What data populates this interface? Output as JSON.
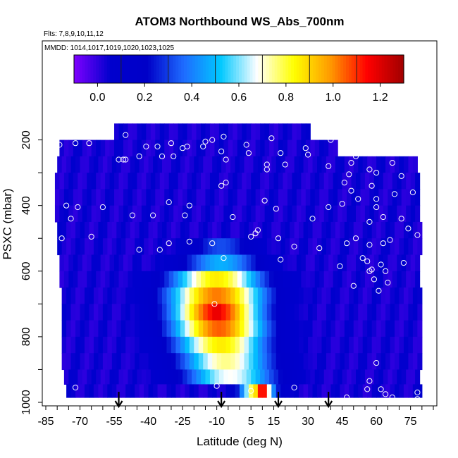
{
  "chart_data": {
    "type": "heatmap",
    "title": "ATOM3 Northbound WS_Abs_700nm",
    "flights_note": "Flts: 7,8,9,10,11,12",
    "dates_note": "MMDD: 1014,1017,1019,1020,1023,1025",
    "xlabel": "Latitude (deg N)",
    "ylabel": "PSXC (mbar)",
    "xlim": [
      -85,
      85
    ],
    "ylim": [
      1000,
      100
    ],
    "y_reversed": true,
    "x_ticks": [
      "-85",
      "-70",
      "-55",
      "-40",
      "-25",
      "-10",
      "5",
      "15",
      "30",
      "45",
      "60",
      "75"
    ],
    "y_ticks": [
      "200",
      "400",
      "600",
      "800",
      "1000"
    ],
    "colorbar": {
      "range": [
        -0.1,
        1.3
      ],
      "ticks": [
        "0.0",
        "0.2",
        "0.4",
        "0.6",
        "0.8",
        "1.0",
        "1.2"
      ],
      "colors": [
        "#7f00ff",
        "#0000cd",
        "#0000c8",
        "#1e6cff",
        "#00c8ff",
        "#ffffff",
        "#ffff00",
        "#ff9900",
        "#ff0000",
        "#a00000"
      ]
    },
    "pressure_levels": [
      175,
      225,
      275,
      325,
      375,
      425,
      475,
      525,
      575,
      625,
      675,
      725,
      775,
      825,
      875,
      925,
      965
    ],
    "domain_bounds": [
      {
        "p": 175,
        "lat_min": -55,
        "lat_max": 30
      },
      {
        "p": 225,
        "lat_min": -79,
        "lat_max": 42
      },
      {
        "p": 275,
        "lat_min": -80,
        "lat_max": 77
      },
      {
        "p": 325,
        "lat_min": -81,
        "lat_max": 78
      },
      {
        "p": 375,
        "lat_min": -81,
        "lat_max": 78
      },
      {
        "p": 425,
        "lat_min": -81,
        "lat_max": 79
      },
      {
        "p": 475,
        "lat_min": -80,
        "lat_max": 79
      },
      {
        "p": 525,
        "lat_min": -80,
        "lat_max": 79
      },
      {
        "p": 575,
        "lat_min": -79,
        "lat_max": 79
      },
      {
        "p": 625,
        "lat_min": -79,
        "lat_max": 79
      },
      {
        "p": 675,
        "lat_min": -78,
        "lat_max": 79
      },
      {
        "p": 725,
        "lat_min": -78,
        "lat_max": 79
      },
      {
        "p": 775,
        "lat_min": -78,
        "lat_max": 79
      },
      {
        "p": 825,
        "lat_min": -78,
        "lat_max": 79
      },
      {
        "p": 875,
        "lat_min": -78,
        "lat_max": 79
      },
      {
        "p": 925,
        "lat_min": -77,
        "lat_max": 79
      },
      {
        "p": 965,
        "lat_min": -76,
        "lat_max": 79
      }
    ],
    "plume": [
      {
        "p": 525,
        "lat_center": -8,
        "half_width": 18,
        "peak": 0.32
      },
      {
        "p": 575,
        "lat_center": -8,
        "half_width": 22,
        "peak": 0.48
      },
      {
        "p": 625,
        "lat_center": -10,
        "half_width": 26,
        "peak": 0.86
      },
      {
        "p": 675,
        "lat_center": -10,
        "half_width": 27,
        "peak": 1.02
      },
      {
        "p": 725,
        "lat_center": -10,
        "half_width": 25,
        "peak": 1.15
      },
      {
        "p": 775,
        "lat_center": -9,
        "half_width": 26,
        "peak": 1.05
      },
      {
        "p": 825,
        "lat_center": -8,
        "half_width": 26,
        "peak": 0.86
      },
      {
        "p": 875,
        "lat_center": -6,
        "half_width": 26,
        "peak": 0.75
      },
      {
        "p": 925,
        "lat_center": -4,
        "half_width": 26,
        "peak": 0.68
      },
      {
        "p": 965,
        "lat_center": 8,
        "half_width": 10,
        "peak": 0.9
      }
    ],
    "hotspots": [
      {
        "p": 965,
        "lat": 10,
        "value": 1.2
      },
      {
        "p": 725,
        "lat": -10,
        "value": 1.25
      }
    ],
    "background_value": 0.03,
    "observation_points": [
      {
        "lat": -50,
        "p": 185
      },
      {
        "lat": -7,
        "p": 190
      },
      {
        "lat": 14,
        "p": 195
      },
      {
        "lat": 40,
        "p": 200
      },
      {
        "lat": -72,
        "p": 210
      },
      {
        "lat": -66,
        "p": 210
      },
      {
        "lat": -12,
        "p": 200
      },
      {
        "lat": -15,
        "p": 205
      },
      {
        "lat": -23,
        "p": 220
      },
      {
        "lat": -30,
        "p": 210
      },
      {
        "lat": 3,
        "p": 215
      },
      {
        "lat": -79,
        "p": 215
      },
      {
        "lat": -16,
        "p": 220
      },
      {
        "lat": -41,
        "p": 220
      },
      {
        "lat": -36,
        "p": 220
      },
      {
        "lat": -25,
        "p": 225
      },
      {
        "lat": 29,
        "p": 225
      },
      {
        "lat": 52,
        "p": 225
      },
      {
        "lat": -8,
        "p": 235
      },
      {
        "lat": 4,
        "p": 240
      },
      {
        "lat": 18,
        "p": 240
      },
      {
        "lat": 30,
        "p": 245
      },
      {
        "lat": -44,
        "p": 250
      },
      {
        "lat": -34,
        "p": 250
      },
      {
        "lat": -29,
        "p": 250
      },
      {
        "lat": 51,
        "p": 250
      },
      {
        "lat": -53,
        "p": 260
      },
      {
        "lat": -51,
        "p": 260
      },
      {
        "lat": -50,
        "p": 260
      },
      {
        "lat": -6,
        "p": 260
      },
      {
        "lat": 12,
        "p": 275
      },
      {
        "lat": 20,
        "p": 275
      },
      {
        "lat": 49,
        "p": 270
      },
      {
        "lat": 67,
        "p": 270
      },
      {
        "lat": 39,
        "p": 280
      },
      {
        "lat": 12,
        "p": 290
      },
      {
        "lat": 57,
        "p": 290
      },
      {
        "lat": 60,
        "p": 300
      },
      {
        "lat": 48,
        "p": 305
      },
      {
        "lat": 71,
        "p": 310
      },
      {
        "lat": -84,
        "p": 325
      },
      {
        "lat": -6,
        "p": 330
      },
      {
        "lat": 46,
        "p": 330
      },
      {
        "lat": -8,
        "p": 340
      },
      {
        "lat": 58,
        "p": 340
      },
      {
        "lat": 49,
        "p": 355
      },
      {
        "lat": 76,
        "p": 360
      },
      {
        "lat": 68,
        "p": 365
      },
      {
        "lat": -31,
        "p": 390
      },
      {
        "lat": 52,
        "p": 380
      },
      {
        "lat": 60,
        "p": 380
      },
      {
        "lat": -22,
        "p": 400
      },
      {
        "lat": 11,
        "p": 385
      },
      {
        "lat": -76,
        "p": 400
      },
      {
        "lat": -71,
        "p": 405
      },
      {
        "lat": -60,
        "p": 405
      },
      {
        "lat": 39,
        "p": 405
      },
      {
        "lat": 45,
        "p": 395
      },
      {
        "lat": 16,
        "p": 410
      },
      {
        "lat": 60,
        "p": 405
      },
      {
        "lat": -47,
        "p": 430
      },
      {
        "lat": -38,
        "p": 430
      },
      {
        "lat": -24,
        "p": 430
      },
      {
        "lat": -3,
        "p": 435
      },
      {
        "lat": -74,
        "p": 440
      },
      {
        "lat": 32,
        "p": 440
      },
      {
        "lat": 63,
        "p": 435
      },
      {
        "lat": 71,
        "p": 440
      },
      {
        "lat": 57,
        "p": 450
      },
      {
        "lat": 74,
        "p": 470
      },
      {
        "lat": 8,
        "p": 475
      },
      {
        "lat": 7,
        "p": 485
      },
      {
        "lat": -78,
        "p": 500
      },
      {
        "lat": -65,
        "p": 495
      },
      {
        "lat": 78,
        "p": 490
      },
      {
        "lat": 5,
        "p": 495
      },
      {
        "lat": 17,
        "p": 500
      },
      {
        "lat": 51,
        "p": 500
      },
      {
        "lat": 66,
        "p": 505
      },
      {
        "lat": -31,
        "p": 515
      },
      {
        "lat": -22,
        "p": 510
      },
      {
        "lat": -12,
        "p": 515
      },
      {
        "lat": 47,
        "p": 515
      },
      {
        "lat": 63,
        "p": 515
      },
      {
        "lat": 57,
        "p": 520
      },
      {
        "lat": 24,
        "p": 525
      },
      {
        "lat": 35,
        "p": 530
      },
      {
        "lat": -44,
        "p": 535
      },
      {
        "lat": -35,
        "p": 535
      },
      {
        "lat": 54,
        "p": 560
      },
      {
        "lat": -7,
        "p": 560
      },
      {
        "lat": 18,
        "p": 565
      },
      {
        "lat": 56,
        "p": 570
      },
      {
        "lat": 72,
        "p": 575
      },
      {
        "lat": 44,
        "p": 585
      },
      {
        "lat": 62,
        "p": 580
      },
      {
        "lat": 58,
        "p": 595
      },
      {
        "lat": 64,
        "p": 600
      },
      {
        "lat": 50,
        "p": 645
      },
      {
        "lat": 59,
        "p": 625
      },
      {
        "lat": 57,
        "p": 600
      },
      {
        "lat": 65,
        "p": 635
      },
      {
        "lat": 61,
        "p": 660
      },
      {
        "lat": -11,
        "p": 700
      },
      {
        "lat": 60,
        "p": 880
      },
      {
        "lat": 57,
        "p": 935
      },
      {
        "lat": -83,
        "p": 955
      },
      {
        "lat": -72,
        "p": 955
      },
      {
        "lat": -10,
        "p": 950
      },
      {
        "lat": 24,
        "p": 955
      },
      {
        "lat": 56,
        "p": 960
      },
      {
        "lat": 64,
        "p": 975
      },
      {
        "lat": 62,
        "p": 960
      },
      {
        "lat": 78,
        "p": 970
      },
      {
        "lat": 78,
        "p": 990
      },
      {
        "lat": 5,
        "p": 965
      },
      {
        "lat": -47,
        "p": 1000
      },
      {
        "lat": -25,
        "p": 1000
      },
      {
        "lat": -13,
        "p": 1000
      },
      {
        "lat": -3,
        "p": 1000
      },
      {
        "lat": 4,
        "p": 1000
      },
      {
        "lat": 10,
        "p": 1000
      },
      {
        "lat": 16,
        "p": 1000
      },
      {
        "lat": 29,
        "p": 1000
      },
      {
        "lat": 40,
        "p": 1000
      },
      {
        "lat": 67,
        "p": 985
      },
      {
        "lat": 47,
        "p": 985
      }
    ],
    "arrow_latitudes": [
      -53,
      -8,
      17,
      39
    ]
  }
}
